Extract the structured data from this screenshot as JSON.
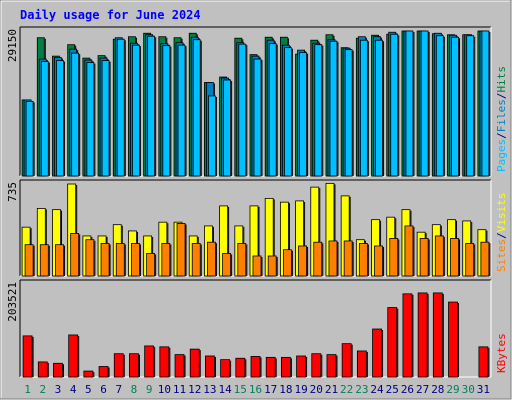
{
  "colors": {
    "background": "#c0c0c0",
    "plot_bg": "#c0c0c0",
    "title": "#0000ff",
    "hits": "#008040",
    "files": "#0080c0",
    "pages": "#00c0ff",
    "visits": "#ffff00",
    "sites": "#ff8000",
    "kbytes": "#ff0000",
    "weekday_label": "#000080",
    "weekend_label": "#00805c"
  },
  "chart_data": [
    {
      "type": "bar",
      "title": "Daily usage for June 2024",
      "ylabel_parts": [
        {
          "text": "Pages",
          "color_key": "pages"
        },
        {
          "text": "/",
          "color_key": "weekday_label"
        },
        {
          "text": "Files",
          "color_key": "files"
        },
        {
          "text": "/",
          "color_key": "weekday_label"
        },
        {
          "text": "Hits",
          "color_key": "hits"
        }
      ],
      "max_label": "29150",
      "ylim": [
        0,
        29150
      ],
      "categories": [
        "1",
        "2",
        "3",
        "4",
        "5",
        "6",
        "7",
        "8",
        "9",
        "10",
        "11",
        "12",
        "13",
        "14",
        "15",
        "16",
        "17",
        "18",
        "19",
        "20",
        "21",
        "22",
        "23",
        "24",
        "25",
        "26",
        "27",
        "28",
        "29",
        "30",
        "31"
      ],
      "weekend_days": [
        "1",
        "2",
        "8",
        "9",
        "15",
        "16",
        "22",
        "23",
        "29",
        "30"
      ],
      "series": [
        {
          "name": "Hits",
          "color_key": "hits",
          "values": [
            15300,
            27800,
            24100,
            26400,
            23700,
            24200,
            27500,
            28000,
            28700,
            28000,
            27800,
            28700,
            18800,
            19900,
            27700,
            24400,
            27900,
            27900,
            24500,
            27300,
            28400,
            25800,
            27700,
            28300,
            28500,
            29150,
            29150,
            28600,
            28400,
            28400,
            29150
          ]
        },
        {
          "name": "Files",
          "color_key": "files",
          "values": [
            15300,
            23500,
            23800,
            25500,
            23300,
            23700,
            27800,
            26700,
            28400,
            26600,
            26800,
            27900,
            18800,
            19700,
            26800,
            24100,
            27300,
            26300,
            25300,
            26700,
            27400,
            25700,
            28000,
            28000,
            28900,
            29150,
            29150,
            28700,
            28300,
            28400,
            29150
          ]
        },
        {
          "name": "Pages",
          "color_key": "pages",
          "values": [
            15000,
            23000,
            23200,
            24700,
            22800,
            23200,
            27500,
            26300,
            28100,
            26200,
            26300,
            27400,
            16100,
            19300,
            26500,
            23500,
            26600,
            25800,
            24800,
            26400,
            27100,
            25400,
            27300,
            27300,
            28500,
            29150,
            29150,
            28200,
            27900,
            28200,
            29150
          ]
        }
      ]
    },
    {
      "type": "bar",
      "ylabel_parts": [
        {
          "text": "Sites",
          "color_key": "sites"
        },
        {
          "text": "/",
          "color_key": "weekday_label"
        },
        {
          "text": "Visits",
          "color_key": "visits"
        }
      ],
      "max_label": "735",
      "ylim": [
        0,
        735
      ],
      "categories": [
        "1",
        "2",
        "3",
        "4",
        "5",
        "6",
        "7",
        "8",
        "9",
        "10",
        "11",
        "12",
        "13",
        "14",
        "15",
        "16",
        "17",
        "18",
        "19",
        "20",
        "21",
        "22",
        "23",
        "24",
        "25",
        "26",
        "27",
        "28",
        "29",
        "30",
        "31"
      ],
      "series": [
        {
          "name": "Visits",
          "color_key": "visits",
          "values": [
            390,
            540,
            530,
            735,
            320,
            320,
            410,
            360,
            320,
            430,
            430,
            320,
            400,
            560,
            400,
            560,
            620,
            590,
            600,
            710,
            740,
            640,
            290,
            450,
            470,
            530,
            350,
            410,
            450,
            440,
            370
          ]
        },
        {
          "name": "Sites",
          "color_key": "sites",
          "values": [
            250,
            250,
            250,
            340,
            290,
            260,
            260,
            260,
            180,
            260,
            420,
            260,
            270,
            180,
            260,
            160,
            160,
            210,
            240,
            270,
            280,
            280,
            260,
            240,
            300,
            400,
            300,
            320,
            300,
            260,
            270
          ]
        }
      ]
    },
    {
      "type": "bar",
      "ylabel_parts": [
        {
          "text": "KBytes",
          "color_key": "kbytes"
        }
      ],
      "max_label": "203521",
      "ylim": [
        0,
        203521
      ],
      "categories": [
        "1",
        "2",
        "3",
        "4",
        "5",
        "6",
        "7",
        "8",
        "9",
        "10",
        "11",
        "12",
        "13",
        "14",
        "15",
        "16",
        "17",
        "18",
        "19",
        "20",
        "21",
        "22",
        "23",
        "24",
        "25",
        "26",
        "27",
        "28",
        "29",
        "30",
        "31"
      ],
      "series": [
        {
          "name": "KBytes",
          "color_key": "kbytes",
          "values": [
            90000,
            33000,
            30000,
            92000,
            13000,
            23000,
            51000,
            51000,
            68000,
            66000,
            49000,
            61000,
            46000,
            38000,
            41000,
            45000,
            43000,
            43000,
            46000,
            51000,
            49000,
            73000,
            57000,
            105000,
            152000,
            182000,
            184000,
            184000,
            164000,
            0,
            66000
          ]
        }
      ]
    }
  ]
}
